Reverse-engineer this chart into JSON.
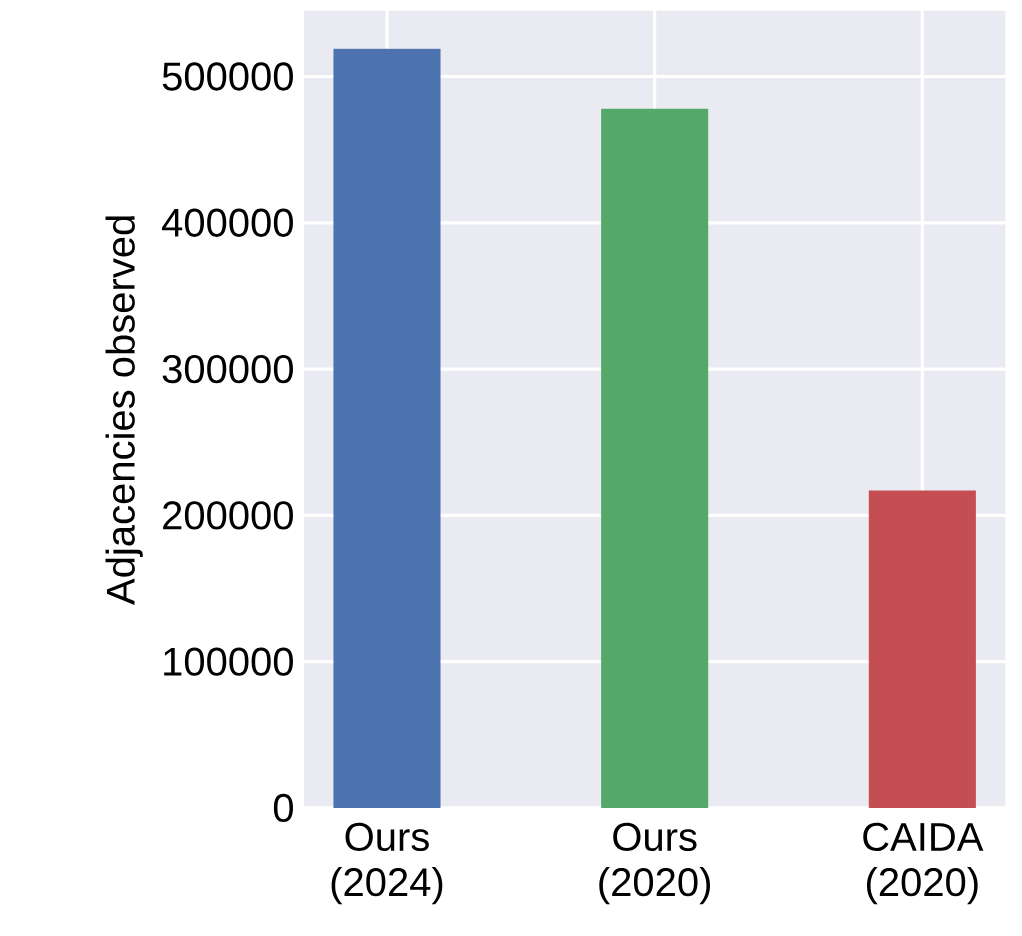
{
  "chart_data": {
    "type": "bar",
    "ylabel": "Adjacencies observed",
    "categories": [
      "Ours (2024)",
      "Ours (2020)",
      "CAIDA (2020)"
    ],
    "values": [
      519000,
      478000,
      217000
    ],
    "colors": [
      "#4c72b0",
      "#55a868",
      "#c44e52"
    ],
    "ylim": [
      0,
      545000
    ],
    "yticks": [
      0,
      100000,
      200000,
      300000,
      400000,
      500000
    ],
    "grid": true
  }
}
